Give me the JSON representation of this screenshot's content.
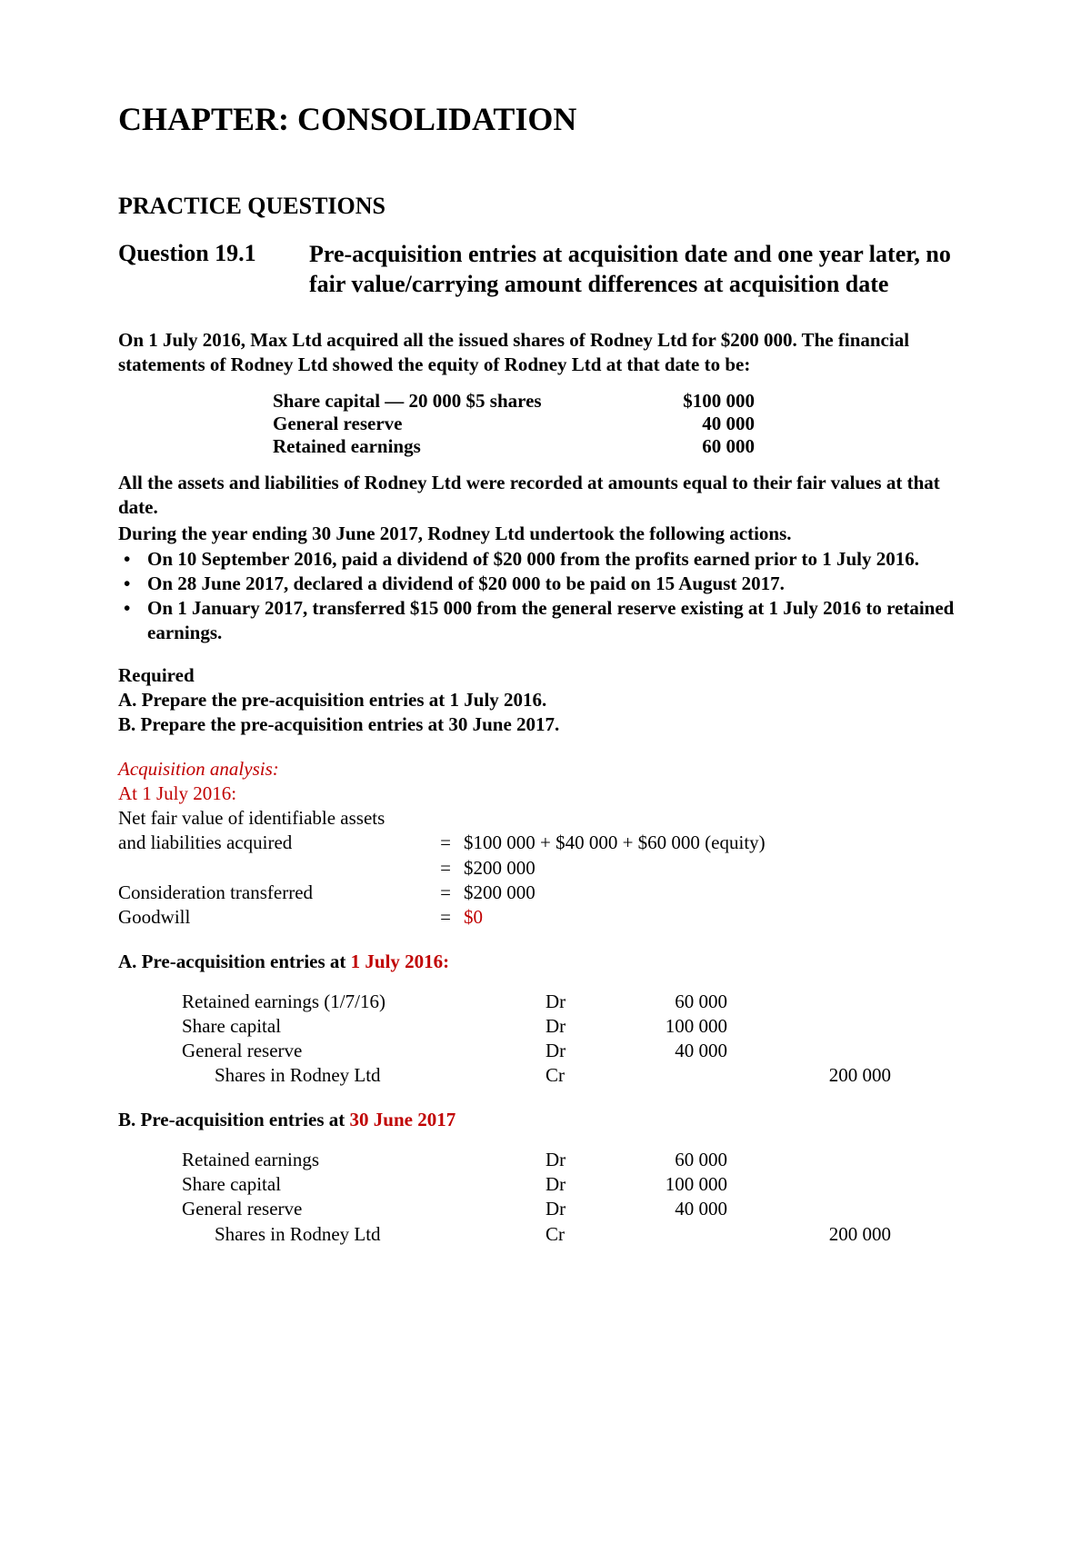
{
  "chapter_title": "CHAPTER: CONSOLIDATION",
  "section_title": "PRACTICE QUESTIONS",
  "question_number": "Question 19.1",
  "question_title": "Pre-acquisition entries at acquisition date and one year later, no fair value/carrying amount differences at acquisition date",
  "intro1": "On 1 July 2016, Max Ltd acquired all the issued shares of Rodney Ltd for $200 000. The financial statements of Rodney Ltd showed the equity of Rodney Ltd at that date to be:",
  "equity": [
    {
      "label": "Share capital — 20 000 $5 shares",
      "value": "$100 000"
    },
    {
      "label": "General reserve",
      "value": "40 000"
    },
    {
      "label": "Retained earnings",
      "value": "60 000"
    }
  ],
  "intro2a": "All the assets and liabilities of Rodney Ltd were recorded at amounts equal to their fair values at that date.",
  "intro2b": "During the year ending 30 June 2017, Rodney Ltd undertook the following actions.",
  "bullets": [
    "On 10 September 2016, paid a dividend of $20 000 from the profits earned prior to 1 July 2016.",
    "On 28 June 2017, declared a dividend of $20 000 to be paid on 15 August 2017.",
    "On 1 January 2017, transferred $15 000 from the general reserve existing at 1 July 2016 to retained earnings."
  ],
  "required_label": "Required",
  "required_items": [
    "A. Prepare the pre-acquisition entries at 1 July 2016.",
    "B. Prepare the pre-acquisition entries at 30 June 2017."
  ],
  "analysis_title": "Acquisition analysis:",
  "analysis_date": "At 1 July 2016:",
  "calc": [
    {
      "desc": "Net fair value of identifiable assets",
      "eq": "",
      "val": ""
    },
    {
      "desc": "and liabilities acquired",
      "eq": "=",
      "val": "$100 000 + $40 000 + $60 000 (equity)"
    },
    {
      "desc": "",
      "eq": "=",
      "val": "$200 000"
    },
    {
      "desc": "Consideration transferred",
      "eq": "=",
      "val": "$200 000"
    },
    {
      "desc": "Goodwill",
      "eq": "=",
      "val": "$0",
      "val_red": true
    }
  ],
  "entryA_prefix": "A. Pre-acquisition entries at ",
  "entryA_date": "1 July 2016:",
  "entriesA": [
    {
      "acct": "Retained earnings (1/7/16)",
      "drcr": "Dr",
      "dr": "60 000",
      "cr": "",
      "indent": false
    },
    {
      "acct": "Share capital",
      "drcr": "Dr",
      "dr": "100 000",
      "cr": "",
      "indent": false
    },
    {
      "acct": "General reserve",
      "drcr": "Dr",
      "dr": "40 000",
      "cr": "",
      "indent": false
    },
    {
      "acct": "Shares in Rodney Ltd",
      "drcr": "Cr",
      "dr": "",
      "cr": "200 000",
      "indent": true
    }
  ],
  "entryB_prefix": "B. Pre-acquisition entries at ",
  "entryB_date": "30 June 2017",
  "entriesB": [
    {
      "acct": "Retained earnings",
      "drcr": "Dr",
      "dr": "60 000",
      "cr": "",
      "indent": false
    },
    {
      "acct": "Share capital",
      "drcr": "Dr",
      "dr": "100 000",
      "cr": "",
      "indent": false
    },
    {
      "acct": "General reserve",
      "drcr": "Dr",
      "dr": "40 000",
      "cr": "",
      "indent": false
    },
    {
      "acct": "Shares in Rodney Ltd",
      "drcr": "Cr",
      "dr": "",
      "cr": "200 000",
      "indent": true
    }
  ]
}
